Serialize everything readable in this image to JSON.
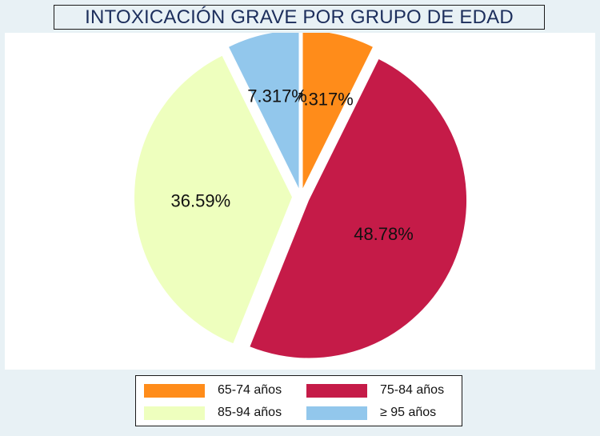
{
  "colors": {
    "background": "#e8f1f5",
    "plot_background": "#ffffff",
    "title_text": "#1c2e5c"
  },
  "chart_data": {
    "type": "pie",
    "title": "INTOXICACIÓN GRAVE POR GRUPO DE EDAD",
    "legend_position": "bottom",
    "exploded": true,
    "slices": [
      {
        "label": "65-74 años",
        "value": 7.317,
        "value_label": "7.317%",
        "color": "#ff8c1a"
      },
      {
        "label": "75-84 años",
        "value": 48.78,
        "value_label": "48.78%",
        "color": "#c51b48"
      },
      {
        "label": "85-94 años",
        "value": 36.59,
        "value_label": "36.59%",
        "color": "#eeffbe"
      },
      {
        "label": "≥ 95 años",
        "value": 7.317,
        "value_label": "7.317%",
        "color": "#92c7ec"
      }
    ]
  }
}
